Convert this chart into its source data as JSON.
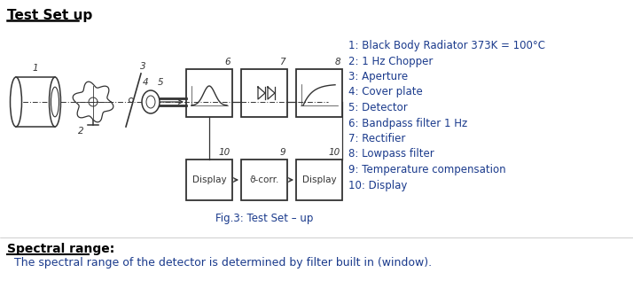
{
  "title": "Test Set up",
  "fig_caption": "Fig.3: Test Set – up",
  "legend_items": [
    "1: Black Body Radiator 373K = 100°C",
    "2: 1 Hz Chopper",
    "3: Aperture",
    "4: Cover plate",
    "5: Detector",
    "6: Bandpass filter 1 Hz",
    "7: Rectifier",
    "8: Lowpass filter",
    "9: Temperature compensation",
    "10: Display"
  ],
  "spectral_title": "Spectral range:",
  "spectral_text": "The spectral range of the detector is determined by filter built in (window).",
  "bg_color": "#ffffff",
  "text_color": "#1a3a8c",
  "diagram_color": "#333333",
  "title_color": "#000000"
}
